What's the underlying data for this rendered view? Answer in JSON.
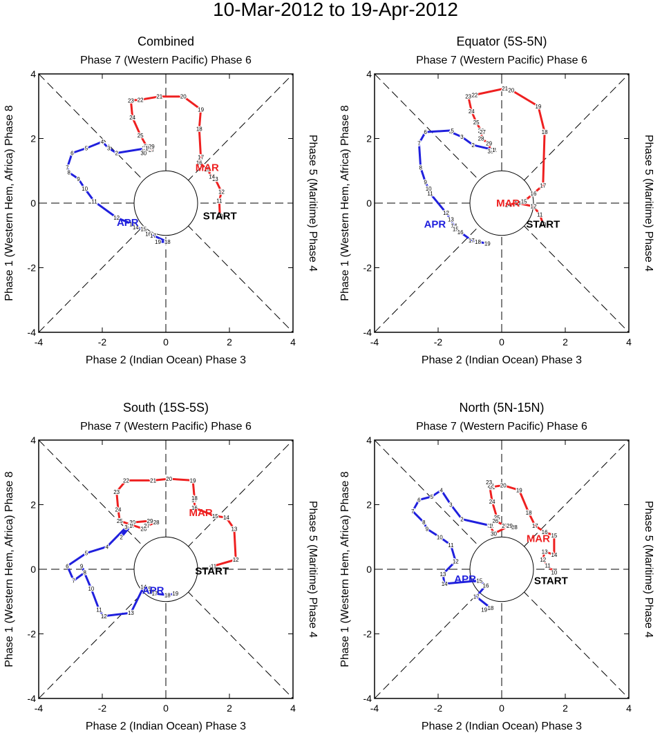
{
  "title": "10-Mar-2012 to 19-Apr-2012",
  "axis_labels": {
    "top": "Phase 7 (Western Pacific) Phase 6",
    "bottom": "Phase 2 (Indian Ocean) Phase 3",
    "left": "Phase 1 (Western Hem, Africa) Phase 8",
    "right": "Phase 5 (Maritime) Phase 4"
  },
  "marker_labels": {
    "start": "START",
    "mar": "MAR",
    "apr": "APR"
  },
  "colors": {
    "march": "#ee2020",
    "april": "#2020dd"
  },
  "chart_data": [
    {
      "type": "line",
      "title": "Combined",
      "xlim": [
        -4,
        4
      ],
      "ylim": [
        -4,
        4
      ],
      "xticks": [
        -4,
        -2,
        0,
        2,
        4
      ],
      "yticks": [
        -4,
        -2,
        0,
        2,
        4
      ],
      "start": [
        1.7,
        -0.4
      ],
      "mar_label": [
        1.3,
        1.1
      ],
      "apr_label": [
        -1.2,
        -0.6
      ],
      "series": [
        {
          "name": "March",
          "color": "#ee2020",
          "days": [
            10,
            11,
            12,
            13,
            14,
            15,
            16,
            17,
            18,
            19,
            20,
            21,
            22,
            23,
            24,
            25,
            26,
            27,
            28,
            29,
            30,
            31
          ],
          "points": [
            [
              1.7,
              -0.4
            ],
            [
              1.68,
              0.07
            ],
            [
              1.75,
              0.35
            ],
            [
              1.55,
              0.75
            ],
            [
              1.45,
              0.82
            ],
            [
              1.3,
              1.05
            ],
            [
              1.05,
              1.25
            ],
            [
              1.1,
              1.42
            ],
            [
              1.05,
              2.3
            ],
            [
              1.1,
              2.9
            ],
            [
              0.55,
              3.3
            ],
            [
              -0.2,
              3.3
            ],
            [
              -0.8,
              3.2
            ],
            [
              -1.1,
              3.18
            ],
            [
              -1.05,
              2.65
            ],
            [
              -0.8,
              2.1
            ],
            [
              -0.6,
              1.75
            ],
            [
              -0.45,
              1.65
            ],
            [
              -0.65,
              1.7
            ],
            [
              -0.45,
              1.75
            ],
            [
              -0.7,
              1.55
            ],
            [
              -0.6,
              1.7
            ]
          ]
        },
        {
          "name": "April",
          "color": "#2020dd",
          "days": [
            1,
            2,
            3,
            4,
            5,
            6,
            7,
            8,
            9,
            10,
            11,
            12,
            13,
            14,
            15,
            16,
            17,
            18,
            19
          ],
          "points": [
            [
              -0.6,
              1.7
            ],
            [
              -1.55,
              1.55
            ],
            [
              -1.8,
              1.7
            ],
            [
              -2.0,
              1.9
            ],
            [
              -2.5,
              1.7
            ],
            [
              -2.95,
              1.55
            ],
            [
              -3.1,
              1.1
            ],
            [
              -3.05,
              0.95
            ],
            [
              -2.75,
              0.75
            ],
            [
              -2.55,
              0.45
            ],
            [
              -2.25,
              0.05
            ],
            [
              -1.55,
              -0.45
            ],
            [
              -1.05,
              -0.65
            ],
            [
              -0.95,
              -0.75
            ],
            [
              -0.7,
              -0.8
            ],
            [
              -0.55,
              -0.95
            ],
            [
              -0.4,
              -1.0
            ],
            [
              0.05,
              -1.2
            ],
            [
              -0.25,
              -1.2
            ]
          ]
        }
      ]
    },
    {
      "type": "line",
      "title": "Equator (5S-5N)",
      "xlim": [
        -4,
        4
      ],
      "ylim": [
        -4,
        4
      ],
      "xticks": [
        -4,
        -2,
        0,
        2,
        4
      ],
      "yticks": [
        -4,
        -2,
        0,
        2,
        4
      ],
      "start": [
        1.3,
        -0.65
      ],
      "mar_label": [
        0.2,
        0.0
      ],
      "apr_label": [
        -2.1,
        -0.65
      ],
      "series": [
        {
          "name": "March",
          "color": "#ee2020",
          "days": [
            10,
            11,
            12,
            13,
            14,
            15,
            16,
            17,
            18,
            19,
            20,
            21,
            22,
            23,
            24,
            25,
            26,
            27,
            28,
            29,
            30,
            31
          ],
          "points": [
            [
              1.3,
              -0.65
            ],
            [
              1.2,
              -0.35
            ],
            [
              1.0,
              -0.1
            ],
            [
              0.5,
              0.0
            ],
            [
              0.2,
              -0.05
            ],
            [
              0.7,
              0.05
            ],
            [
              1.0,
              0.3
            ],
            [
              1.3,
              0.55
            ],
            [
              1.35,
              2.2
            ],
            [
              1.15,
              3.0
            ],
            [
              0.3,
              3.5
            ],
            [
              0.1,
              3.55
            ],
            [
              -0.85,
              3.35
            ],
            [
              -1.05,
              3.3
            ],
            [
              -0.95,
              2.85
            ],
            [
              -0.8,
              2.5
            ],
            [
              -0.65,
              2.25
            ],
            [
              -0.6,
              2.2
            ],
            [
              -0.65,
              2.0
            ],
            [
              -0.4,
              1.85
            ],
            [
              -0.35,
              1.6
            ],
            [
              -0.25,
              1.65
            ]
          ]
        },
        {
          "name": "April",
          "color": "#2020dd",
          "days": [
            1,
            2,
            3,
            4,
            5,
            6,
            7,
            8,
            9,
            10,
            11,
            12,
            13,
            14,
            15,
            16,
            17,
            18,
            19
          ],
          "points": [
            [
              -0.25,
              1.65
            ],
            [
              -0.9,
              1.8
            ],
            [
              -1.25,
              2.05
            ],
            [
              -1.6,
              2.2
            ],
            [
              -1.55,
              2.25
            ],
            [
              -2.4,
              2.2
            ],
            [
              -2.6,
              1.85
            ],
            [
              -2.55,
              1.1
            ],
            [
              -2.4,
              0.65
            ],
            [
              -2.3,
              0.45
            ],
            [
              -2.25,
              0.3
            ],
            [
              -1.75,
              -0.3
            ],
            [
              -1.6,
              -0.5
            ],
            [
              -1.5,
              -0.7
            ],
            [
              -1.45,
              -0.8
            ],
            [
              -1.3,
              -0.9
            ],
            [
              -0.95,
              -1.15
            ],
            [
              -0.75,
              -1.2
            ],
            [
              -0.45,
              -1.25
            ]
          ]
        }
      ]
    },
    {
      "type": "line",
      "title": "South (15S-5S)",
      "xlim": [
        -4,
        4
      ],
      "ylim": [
        -4,
        4
      ],
      "xticks": [
        -4,
        -2,
        0,
        2,
        4
      ],
      "yticks": [
        -4,
        -2,
        0,
        2,
        4
      ],
      "start": [
        1.45,
        -0.05
      ],
      "mar_label": [
        1.1,
        1.75
      ],
      "apr_label": [
        -0.4,
        -0.65
      ],
      "series": [
        {
          "name": "March",
          "color": "#ee2020",
          "days": [
            10,
            11,
            12,
            13,
            14,
            15,
            16,
            17,
            18,
            19,
            20,
            21,
            22,
            23,
            24,
            25,
            26,
            27,
            28,
            29,
            30,
            31
          ],
          "points": [
            [
              1.45,
              0.05
            ],
            [
              1.5,
              0.1
            ],
            [
              2.2,
              0.3
            ],
            [
              2.15,
              1.25
            ],
            [
              1.9,
              1.6
            ],
            [
              1.55,
              1.65
            ],
            [
              0.9,
              1.9
            ],
            [
              0.9,
              2.15
            ],
            [
              0.9,
              2.2
            ],
            [
              0.85,
              2.75
            ],
            [
              0.1,
              2.8
            ],
            [
              -0.4,
              2.75
            ],
            [
              -1.25,
              2.75
            ],
            [
              -1.55,
              2.4
            ],
            [
              -1.5,
              1.85
            ],
            [
              -1.45,
              1.5
            ],
            [
              -0.7,
              1.25
            ],
            [
              -0.6,
              1.35
            ],
            [
              -0.3,
              1.45
            ],
            [
              -0.5,
              1.5
            ],
            [
              -1.05,
              1.45
            ],
            [
              -1.1,
              1.35
            ]
          ]
        },
        {
          "name": "April",
          "color": "#2020dd",
          "days": [
            1,
            2,
            3,
            4,
            5,
            6,
            7,
            8,
            9,
            10,
            11,
            12,
            13,
            14,
            15,
            16,
            17,
            18,
            19
          ],
          "points": [
            [
              -1.1,
              1.35
            ],
            [
              -1.4,
              1.0
            ],
            [
              -1.25,
              1.3
            ],
            [
              -1.85,
              0.7
            ],
            [
              -2.5,
              0.5
            ],
            [
              -3.1,
              0.1
            ],
            [
              -2.9,
              -0.35
            ],
            [
              -2.55,
              -0.1
            ],
            [
              -2.65,
              0.1
            ],
            [
              -2.35,
              -0.6
            ],
            [
              -2.1,
              -1.25
            ],
            [
              -1.95,
              -1.45
            ],
            [
              -1.1,
              -1.35
            ],
            [
              -0.7,
              -0.55
            ],
            [
              -0.55,
              -0.6
            ],
            [
              -0.45,
              -0.7
            ],
            [
              -0.35,
              -0.75
            ],
            [
              0.05,
              -0.8
            ],
            [
              0.3,
              -0.75
            ]
          ]
        }
      ]
    },
    {
      "type": "line",
      "title": "North (5N-15N)",
      "xlim": [
        -4,
        4
      ],
      "ylim": [
        -4,
        4
      ],
      "xticks": [
        -4,
        -2,
        0,
        2,
        4
      ],
      "yticks": [
        -4,
        -2,
        0,
        2,
        4
      ],
      "start": [
        1.55,
        -0.35
      ],
      "mar_label": [
        1.15,
        0.95
      ],
      "apr_label": [
        -1.15,
        -0.3
      ],
      "series": [
        {
          "name": "March",
          "color": "#ee2020",
          "days": [
            10,
            11,
            12,
            13,
            14,
            15,
            16,
            17,
            18,
            19,
            20,
            21,
            22,
            23,
            24,
            25,
            26,
            27,
            28,
            29,
            30,
            31
          ],
          "points": [
            [
              1.65,
              -0.1
            ],
            [
              1.45,
              0.12
            ],
            [
              1.3,
              0.3
            ],
            [
              1.35,
              0.55
            ],
            [
              1.65,
              0.45
            ],
            [
              1.65,
              1.05
            ],
            [
              1.35,
              1.15
            ],
            [
              1.05,
              1.35
            ],
            [
              0.85,
              1.75
            ],
            [
              0.55,
              2.45
            ],
            [
              0.05,
              2.6
            ],
            [
              -0.3,
              2.55
            ],
            [
              -0.35,
              2.6
            ],
            [
              -0.4,
              2.7
            ],
            [
              -0.3,
              2.1
            ],
            [
              -0.15,
              1.6
            ],
            [
              -0.2,
              1.5
            ],
            [
              0.1,
              1.35
            ],
            [
              0.4,
              1.3
            ],
            [
              0.25,
              1.35
            ],
            [
              -0.25,
              1.1
            ],
            [
              -0.35,
              1.35
            ]
          ]
        },
        {
          "name": "April",
          "color": "#2020dd",
          "days": [
            1,
            2,
            3,
            4,
            5,
            6,
            7,
            8,
            9,
            10,
            11,
            12,
            13,
            14,
            15,
            16,
            17,
            18,
            19
          ],
          "points": [
            [
              -0.35,
              1.35
            ],
            [
              -1.25,
              1.55
            ],
            [
              -1.6,
              2.0
            ],
            [
              -1.9,
              2.45
            ],
            [
              -2.2,
              2.25
            ],
            [
              -2.6,
              2.15
            ],
            [
              -2.8,
              1.8
            ],
            [
              -2.45,
              1.45
            ],
            [
              -2.35,
              1.25
            ],
            [
              -1.95,
              1.0
            ],
            [
              -1.6,
              0.75
            ],
            [
              -1.45,
              0.25
            ],
            [
              -1.85,
              -0.15
            ],
            [
              -1.8,
              -0.45
            ],
            [
              -0.7,
              -0.35
            ],
            [
              -0.5,
              -0.5
            ],
            [
              -0.8,
              -0.85
            ],
            [
              -0.35,
              -1.2
            ],
            [
              -0.55,
              -1.25
            ]
          ]
        }
      ]
    }
  ]
}
